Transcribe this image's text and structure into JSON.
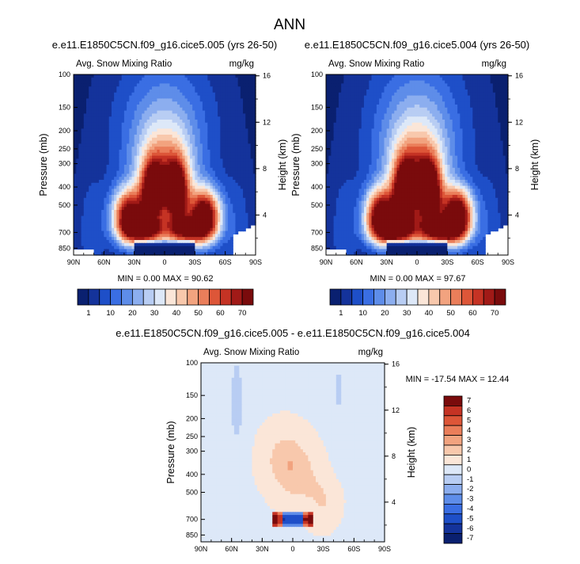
{
  "page_title": "ANN",
  "colors": {
    "palette": [
      "#0a2070",
      "#14339b",
      "#1e4fc8",
      "#3a6ee3",
      "#5e8de9",
      "#8caeef",
      "#b8cdf3",
      "#dde8f8",
      "#fbe6d8",
      "#f8c8ac",
      "#f2a37f",
      "#ea7e5a",
      "#dd5638",
      "#c53324",
      "#a11a17",
      "#7a0b0c"
    ],
    "diff_palette": [
      "#0a2070",
      "#14339b",
      "#1e4fc8",
      "#3a6ee3",
      "#5e8de9",
      "#8caeef",
      "#b8cdf3",
      "#dde8f8",
      "#fbe6d8",
      "#f8c8ac",
      "#f2a37f",
      "#ea7e5a",
      "#dd5638",
      "#c53324",
      "#7a0b0c"
    ]
  },
  "chart_data": [
    {
      "type": "heatmap",
      "title": "e.e11.E1850C5CN.f09_g16.cice5.005 (yrs 26-50)",
      "subtitle_left": "Avg. Snow Mixing Ratio",
      "units": "mg/kg",
      "ylabel": "Pressure (mb)",
      "ylabel_right": "Height (km)",
      "x_ticks": [
        "90N",
        "60N",
        "30N",
        "0",
        "30S",
        "60S",
        "90S"
      ],
      "y_ticks": [
        "100",
        "150",
        "200",
        "250",
        "300",
        "400",
        "500",
        "700",
        "850"
      ],
      "y_ticks_right": [
        "16",
        "12",
        "8",
        "4"
      ],
      "stats_text": "MIN =   0.00  MAX =  90.62",
      "min": 0.0,
      "max": 90.62,
      "colorbar_labels": [
        "1",
        "10",
        "20",
        "30",
        "40",
        "50",
        "60",
        "70"
      ]
    },
    {
      "type": "heatmap",
      "title": "e.e11.E1850C5CN.f09_g16.cice5.004 (yrs 26-50)",
      "subtitle_left": "Avg. Snow Mixing Ratio",
      "units": "mg/kg",
      "ylabel": "Pressure (mb)",
      "ylabel_right": "Height (km)",
      "x_ticks": [
        "90N",
        "60N",
        "30N",
        "0",
        "30S",
        "60S",
        "90S"
      ],
      "y_ticks": [
        "100",
        "150",
        "200",
        "250",
        "300",
        "400",
        "500",
        "700",
        "850"
      ],
      "y_ticks_right": [
        "16",
        "12",
        "8",
        "4"
      ],
      "stats_text": "MIN =   0.00  MAX =  97.67",
      "min": 0.0,
      "max": 97.67,
      "colorbar_labels": [
        "1",
        "10",
        "20",
        "30",
        "40",
        "50",
        "60",
        "70"
      ]
    },
    {
      "type": "heatmap",
      "title": "e.e11.E1850C5CN.f09_g16.cice5.005 - e.e11.E1850C5CN.f09_g16.cice5.004",
      "subtitle_left": "Avg. Snow Mixing Ratio",
      "units": "mg/kg",
      "ylabel": "Pressure (mb)",
      "ylabel_right": "Height (km)",
      "x_ticks": [
        "90N",
        "60N",
        "30N",
        "0",
        "30S",
        "60S",
        "90S"
      ],
      "y_ticks": [
        "100",
        "150",
        "200",
        "250",
        "300",
        "400",
        "500",
        "700",
        "850"
      ],
      "y_ticks_right": [
        "16",
        "12",
        "8",
        "4"
      ],
      "stats_text": "MIN = -17.54  MAX =  12.44",
      "min": -17.54,
      "max": 12.44,
      "colorbar_labels": [
        "7",
        "6",
        "5",
        "4",
        "3",
        "2",
        "1",
        "0",
        "-1",
        "-2",
        "-3",
        "-4",
        "-5",
        "-6",
        "-7"
      ]
    }
  ]
}
